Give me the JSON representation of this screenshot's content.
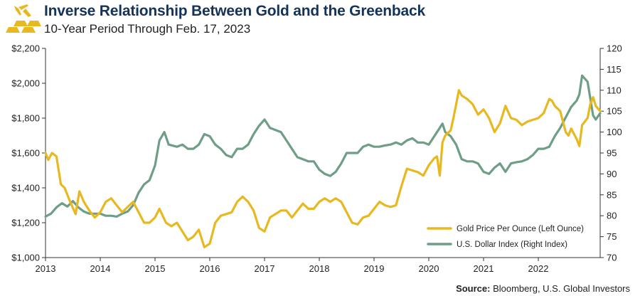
{
  "header": {
    "title": "Inverse Relationship Between Gold and the Greenback",
    "subtitle": "10-Year Period Through Feb. 17, 2023"
  },
  "source": {
    "label": "Source:",
    "text": " Bloomberg, U.S. Global Investors"
  },
  "colors": {
    "gold": "#e8b820",
    "dollar": "#6e9e86",
    "axis": "#333333",
    "title": "#14335a"
  },
  "chart_data": {
    "type": "line",
    "title": "Inverse Relationship Between Gold and the Greenback",
    "subtitle": "10-Year Period Through Feb. 17, 2023",
    "x_range": [
      2013.0,
      2023.13
    ],
    "x_ticks": [
      "2013",
      "2014",
      "2015",
      "2016",
      "2017",
      "2018",
      "2019",
      "2020",
      "2021",
      "2022"
    ],
    "y_left": {
      "range": [
        1000,
        2200
      ],
      "ticks": [
        1000,
        1200,
        1400,
        1600,
        1800,
        2000,
        2200
      ],
      "tick_labels": [
        "$1,000",
        "$1,200",
        "$1,400",
        "$1,600",
        "$1,800",
        "$2,000",
        "$2,200"
      ]
    },
    "y_right": {
      "range": [
        70,
        120
      ],
      "ticks": [
        70,
        75,
        80,
        85,
        90,
        95,
        100,
        105,
        110,
        115,
        120
      ],
      "tick_labels": [
        "70",
        "75",
        "80",
        "85",
        "90",
        "95",
        "100",
        "105",
        "110",
        "115",
        "120"
      ]
    },
    "legend_position": "bottom-right",
    "series": [
      {
        "name": "Gold Price Per Ounce (Left Ounce)",
        "axis": "left",
        "color": "#e8b820",
        "x": [
          2013.0,
          2013.05,
          2013.12,
          2013.2,
          2013.28,
          2013.35,
          2013.45,
          2013.55,
          2013.62,
          2013.7,
          2013.8,
          2013.9,
          2014.0,
          2014.1,
          2014.2,
          2014.3,
          2014.4,
          2014.5,
          2014.6,
          2014.7,
          2014.8,
          2014.9,
          2015.0,
          2015.08,
          2015.2,
          2015.3,
          2015.4,
          2015.5,
          2015.6,
          2015.7,
          2015.8,
          2015.9,
          2016.0,
          2016.1,
          2016.2,
          2016.3,
          2016.4,
          2016.5,
          2016.6,
          2016.7,
          2016.8,
          2016.9,
          2017.0,
          2017.1,
          2017.2,
          2017.3,
          2017.4,
          2017.5,
          2017.6,
          2017.7,
          2017.8,
          2017.9,
          2018.0,
          2018.1,
          2018.2,
          2018.3,
          2018.4,
          2018.5,
          2018.6,
          2018.7,
          2018.8,
          2018.9,
          2019.0,
          2019.1,
          2019.2,
          2019.3,
          2019.4,
          2019.5,
          2019.6,
          2019.7,
          2019.8,
          2019.9,
          2020.0,
          2020.1,
          2020.15,
          2020.2,
          2020.25,
          2020.3,
          2020.4,
          2020.45,
          2020.5,
          2020.55,
          2020.6,
          2020.7,
          2020.8,
          2020.9,
          2021.0,
          2021.1,
          2021.2,
          2021.3,
          2021.4,
          2021.5,
          2021.6,
          2021.7,
          2021.8,
          2021.9,
          2022.0,
          2022.1,
          2022.2,
          2022.25,
          2022.3,
          2022.4,
          2022.5,
          2022.55,
          2022.6,
          2022.7,
          2022.75,
          2022.8,
          2022.9,
          2022.95,
          2023.0,
          2023.05,
          2023.13
        ],
        "values": [
          1600,
          1560,
          1600,
          1580,
          1420,
          1400,
          1320,
          1250,
          1380,
          1320,
          1270,
          1230,
          1260,
          1320,
          1340,
          1300,
          1260,
          1290,
          1320,
          1260,
          1200,
          1200,
          1230,
          1280,
          1200,
          1180,
          1200,
          1150,
          1100,
          1120,
          1160,
          1060,
          1080,
          1200,
          1240,
          1250,
          1260,
          1320,
          1350,
          1320,
          1270,
          1170,
          1150,
          1230,
          1250,
          1270,
          1270,
          1230,
          1270,
          1310,
          1280,
          1280,
          1320,
          1340,
          1320,
          1340,
          1320,
          1260,
          1200,
          1190,
          1230,
          1240,
          1280,
          1320,
          1300,
          1290,
          1300,
          1410,
          1510,
          1500,
          1490,
          1470,
          1530,
          1570,
          1580,
          1470,
          1660,
          1700,
          1730,
          1800,
          1880,
          1960,
          1930,
          1910,
          1880,
          1820,
          1850,
          1800,
          1720,
          1770,
          1870,
          1800,
          1790,
          1760,
          1780,
          1790,
          1800,
          1830,
          1910,
          1900,
          1870,
          1840,
          1720,
          1700,
          1740,
          1680,
          1640,
          1760,
          1800,
          1880,
          1920,
          1870,
          1840
        ]
      },
      {
        "name": "U.S. Dollar Index (Right Index)",
        "axis": "right",
        "color": "#6e9e86",
        "x": [
          2013.0,
          2013.1,
          2013.2,
          2013.3,
          2013.4,
          2013.5,
          2013.6,
          2013.7,
          2013.8,
          2013.9,
          2014.0,
          2014.1,
          2014.2,
          2014.3,
          2014.4,
          2014.5,
          2014.6,
          2014.7,
          2014.8,
          2014.9,
          2015.0,
          2015.08,
          2015.17,
          2015.25,
          2015.4,
          2015.5,
          2015.6,
          2015.7,
          2015.8,
          2015.9,
          2016.0,
          2016.1,
          2016.2,
          2016.3,
          2016.4,
          2016.5,
          2016.6,
          2016.7,
          2016.8,
          2016.9,
          2017.0,
          2017.1,
          2017.2,
          2017.3,
          2017.4,
          2017.5,
          2017.6,
          2017.7,
          2017.8,
          2017.9,
          2018.0,
          2018.1,
          2018.2,
          2018.3,
          2018.4,
          2018.5,
          2018.6,
          2018.7,
          2018.8,
          2018.9,
          2019.0,
          2019.1,
          2019.2,
          2019.3,
          2019.4,
          2019.5,
          2019.6,
          2019.7,
          2019.8,
          2019.9,
          2020.0,
          2020.1,
          2020.2,
          2020.25,
          2020.3,
          2020.4,
          2020.5,
          2020.6,
          2020.7,
          2020.8,
          2020.9,
          2021.0,
          2021.1,
          2021.2,
          2021.3,
          2021.4,
          2021.5,
          2021.6,
          2021.7,
          2021.8,
          2021.9,
          2022.0,
          2022.1,
          2022.2,
          2022.3,
          2022.4,
          2022.5,
          2022.6,
          2022.7,
          2022.75,
          2022.8,
          2022.9,
          2023.0,
          2023.05,
          2023.13
        ],
        "values": [
          79.8,
          80.5,
          82.0,
          83.0,
          82.2,
          83.5,
          82.0,
          81.0,
          80.5,
          80.5,
          80.5,
          80.0,
          80.0,
          79.8,
          80.5,
          81.0,
          82.5,
          85.5,
          87.5,
          88.5,
          92.0,
          98.0,
          100.0,
          97.0,
          96.5,
          97.0,
          96.0,
          96.0,
          97.0,
          99.5,
          99.0,
          97.0,
          96.0,
          94.5,
          94.0,
          96.0,
          96.0,
          97.0,
          99.5,
          101.5,
          103.0,
          101.0,
          100.5,
          100.0,
          98.0,
          96.0,
          94.0,
          93.5,
          93.0,
          93.0,
          91.0,
          90.0,
          89.5,
          90.5,
          92.5,
          95.0,
          95.0,
          95.0,
          96.5,
          97.0,
          96.5,
          96.5,
          96.8,
          97.0,
          97.5,
          97.0,
          98.0,
          98.5,
          97.5,
          97.5,
          97.0,
          99.0,
          101.0,
          102.0,
          100.0,
          99.0,
          97.0,
          93.5,
          93.0,
          93.0,
          92.5,
          90.5,
          90.0,
          91.5,
          92.5,
          90.5,
          92.5,
          92.8,
          93.0,
          93.5,
          94.5,
          96.0,
          96.0,
          96.5,
          99.0,
          101.0,
          103.5,
          106.0,
          107.5,
          109.0,
          113.5,
          112.0,
          104.0,
          103.0,
          104.5
        ]
      }
    ]
  }
}
